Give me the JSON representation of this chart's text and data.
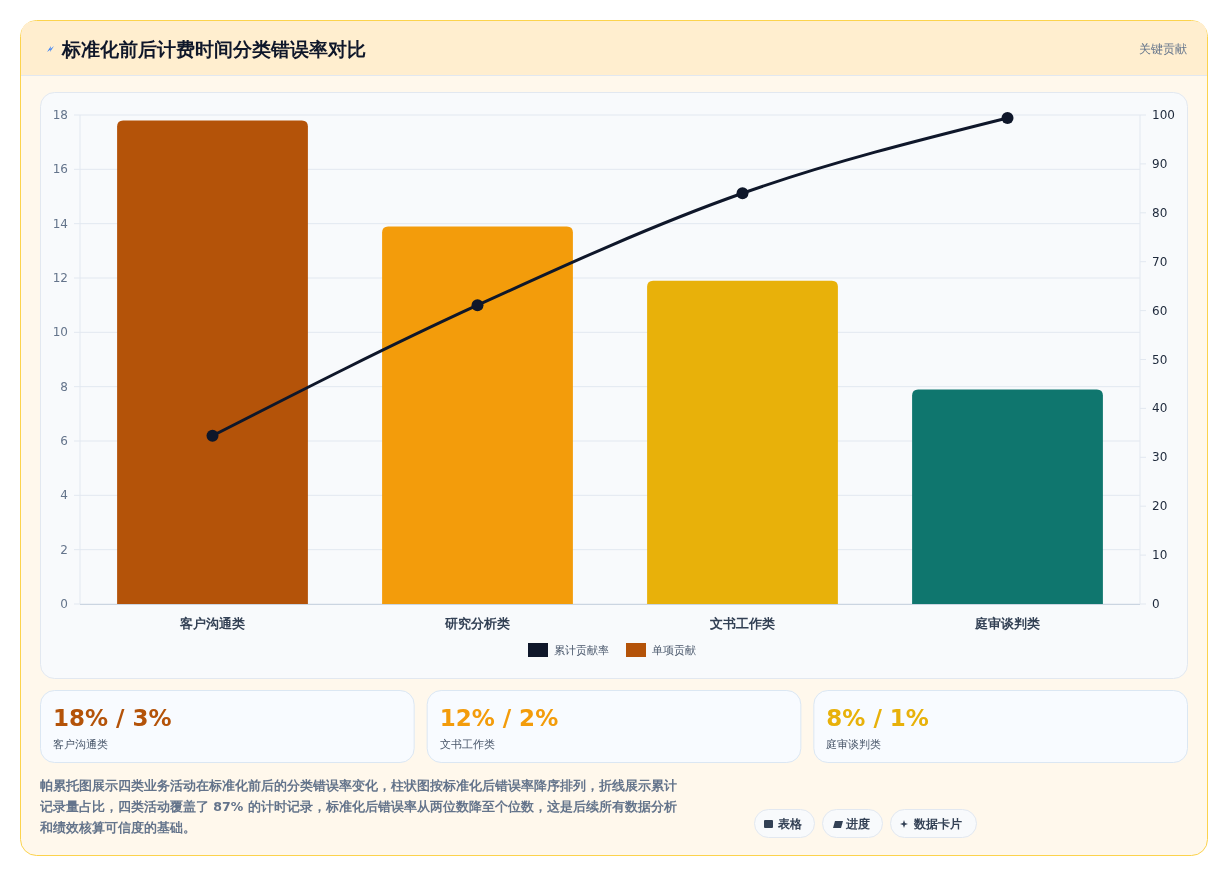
{
  "chart_data": [
    {
      "type": "bar",
      "title": "标准化前后计费时间分类错误率对比",
      "annotations": [
        "关键贡献"
      ],
      "categories": [
        "客户沟通类",
        "研究分析类",
        "文书工作类",
        "庭审谈判类"
      ],
      "series": [
        {
          "name": "累计贡献率",
          "type": "line",
          "axis": "y2",
          "color": "#0f172a",
          "values": [
            34.4,
            61.1,
            84.0,
            99.4
          ]
        },
        {
          "name": "单项贡献",
          "type": "bar",
          "color": "#b45309",
          "colors": [
            "#b45309",
            "#f39c0b",
            "#e8b10a",
            "#0f766e"
          ],
          "values": [
            17.8,
            13.9,
            11.9,
            7.9
          ]
        }
      ],
      "ylim": [
        0,
        18
      ],
      "yticks": [
        0,
        2,
        4,
        6,
        8,
        10,
        12,
        14,
        16,
        18
      ],
      "y2lim": [
        0,
        100
      ],
      "y2ticks": [
        0,
        10,
        20,
        30,
        40,
        50,
        60,
        70,
        80,
        90,
        100
      ],
      "grid": "y",
      "legend": "bottom",
      "marker": "circle",
      "line_style": "solid"
    },
    {
      "type": "other",
      "categories": [
        "客户沟通类",
        "文书工作类",
        "庭审谈判类"
      ],
      "value_labels": [
        "18% / 3%",
        "12% / 2%",
        "8% / 1%"
      ],
      "annotations": [
        "帕累托图展示四类业务活动在标准化前后的分类错误率变化，柱状图按标准化后错误率降序排列，折线展示累计记录量占比，四类活动覆盖了 87% 的计时记录，标准化后错误率从两位数降至个位数，这是后续所有数据分析和绩效核算可信度的基础。",
        "表格",
        "进度",
        "数据卡片"
      ]
    }
  ]
}
